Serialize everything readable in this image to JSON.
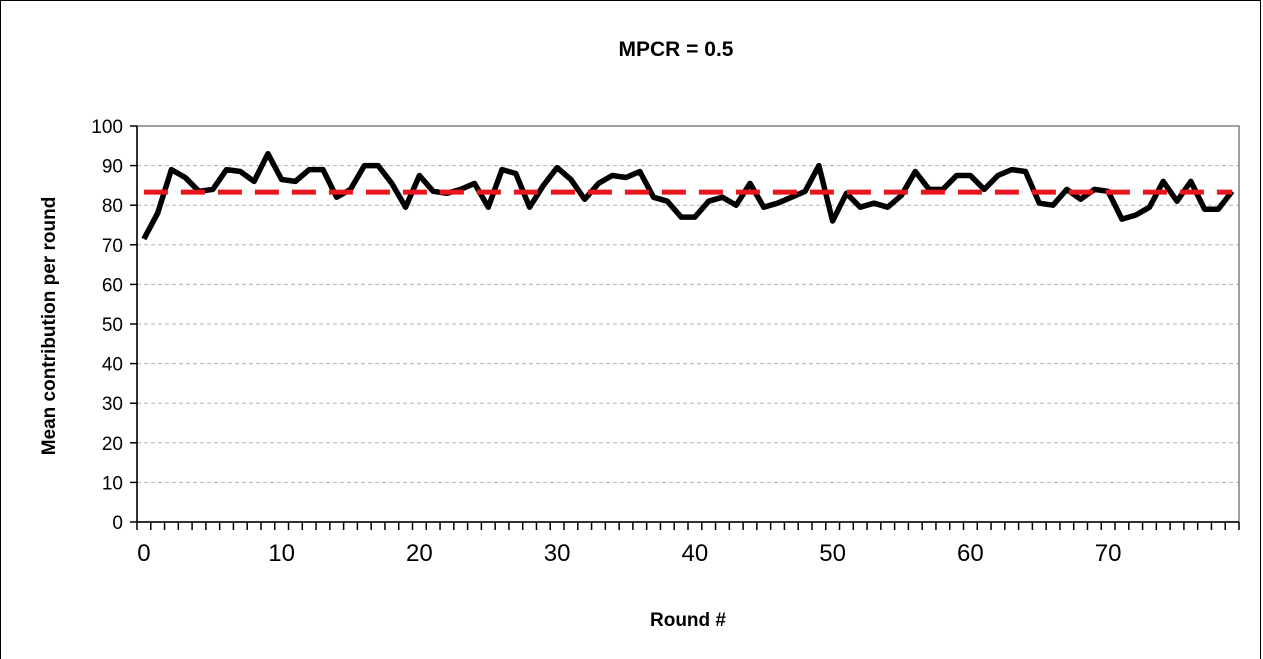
{
  "chart_data": {
    "type": "line",
    "title": "MPCR = 0.5",
    "xlabel": "Round #",
    "ylabel": "Mean contribution per round",
    "ylim": [
      0,
      100
    ],
    "yticks": [
      0,
      10,
      20,
      30,
      40,
      50,
      60,
      70,
      80,
      90,
      100
    ],
    "xlim": [
      0,
      79
    ],
    "xticks": [
      0,
      10,
      20,
      30,
      40,
      50,
      60,
      70
    ],
    "grid": "horizontal dashed",
    "series": [
      {
        "style": "solid",
        "color": "#000000",
        "x": [
          0,
          1,
          2,
          3,
          4,
          5,
          6,
          7,
          8,
          9,
          10,
          11,
          12,
          13,
          14,
          15,
          16,
          17,
          18,
          19,
          20,
          21,
          22,
          23,
          24,
          25,
          26,
          27,
          28,
          29,
          30,
          31,
          32,
          33,
          34,
          35,
          36,
          37,
          38,
          39,
          40,
          41,
          42,
          43,
          44,
          45,
          46,
          47,
          48,
          49,
          50,
          51,
          52,
          53,
          54,
          55,
          56,
          57,
          58,
          59,
          60,
          61,
          62,
          63,
          64,
          65,
          66,
          67,
          68,
          69,
          70,
          71,
          72,
          73,
          74,
          75,
          76,
          77,
          78,
          79
        ],
        "y": [
          71.5,
          78,
          89,
          87,
          83.5,
          84,
          89,
          88.5,
          86,
          93,
          86.5,
          86,
          89,
          89,
          82,
          84,
          90,
          90,
          85.5,
          79.5,
          87.5,
          83.5,
          83,
          84,
          85.5,
          79.5,
          89,
          88,
          79.5,
          85,
          89.5,
          86.5,
          81.5,
          85.5,
          87.5,
          87,
          88.5,
          82,
          81,
          77,
          77,
          81,
          82,
          80,
          85.5,
          79.5,
          80.5,
          82,
          83.5,
          90,
          76,
          83,
          79.5,
          80.5,
          79.5,
          82.5,
          88.5,
          84,
          84,
          87.5,
          87.5,
          84,
          87.5,
          89,
          88.5,
          80.5,
          80,
          84,
          81.5,
          84,
          83.5,
          76.5,
          77.5,
          79.5,
          86,
          81,
          86,
          79,
          79,
          83.5
        ]
      },
      {
        "style": "dashed",
        "color": "#e8141e",
        "x": [
          0,
          79
        ],
        "y": [
          83.3,
          83.3
        ]
      }
    ]
  }
}
